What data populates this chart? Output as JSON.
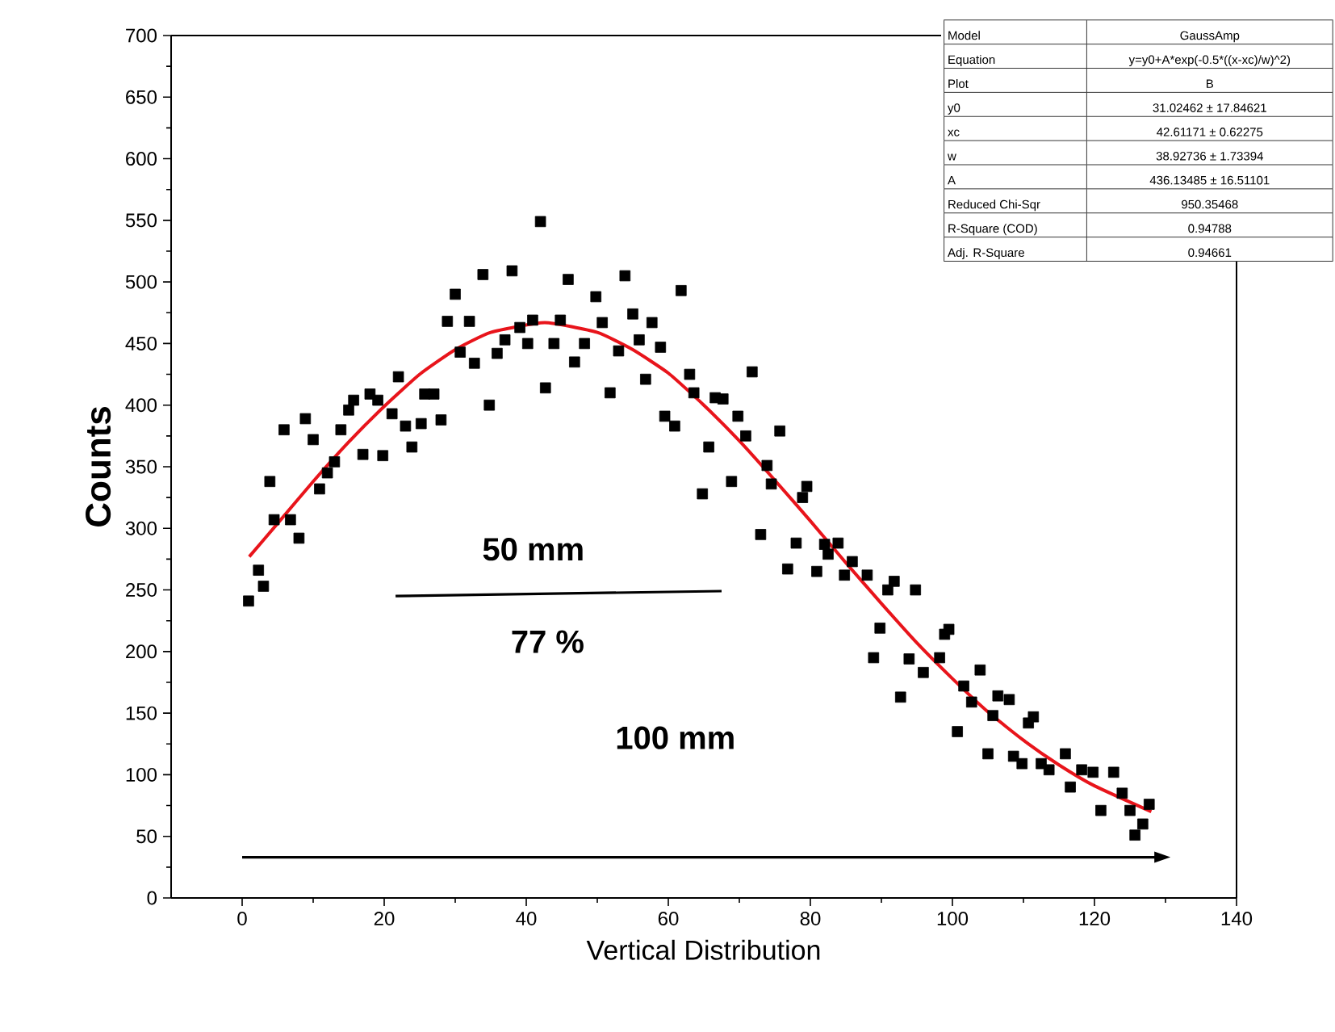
{
  "chart_data": {
    "type": "scatter",
    "xlabel": "Vertical Distribution",
    "ylabel": "Counts",
    "xlim": [
      -10,
      140
    ],
    "xticks": [
      0,
      20,
      40,
      60,
      80,
      100,
      120,
      140
    ],
    "ylim": [
      0,
      700
    ],
    "yticks": [
      0,
      50,
      100,
      150,
      200,
      250,
      300,
      350,
      400,
      450,
      500,
      550,
      600,
      650,
      700
    ],
    "grid": false,
    "series": [
      {
        "type": "scatter",
        "marker": "square",
        "color": "#000000",
        "x": [
          0.9,
          2.3,
          3.0,
          3.9,
          4.5,
          5.9,
          6.8,
          8.0,
          8.9,
          10.0,
          10.9,
          12.0,
          13.0,
          13.9,
          15.0,
          15.7,
          17.0,
          18.0,
          19.1,
          19.8,
          21.1,
          22.0,
          23.0,
          23.9,
          25.2,
          25.7,
          27.0,
          28.0,
          28.9,
          30.0,
          30.7,
          32.0,
          32.7,
          33.9,
          34.8,
          35.9,
          37.0,
          38.0,
          39.1,
          40.2,
          40.9,
          42.0,
          42.7,
          43.9,
          44.8,
          45.9,
          46.8,
          48.2,
          49.8,
          50.7,
          51.8,
          53.0,
          53.9,
          55.0,
          55.9,
          56.8,
          57.7,
          58.9,
          59.5,
          60.9,
          61.8,
          63.0,
          63.6,
          64.8,
          65.7,
          66.6,
          67.7,
          68.9,
          69.8,
          70.9,
          71.8,
          73.0,
          73.9,
          74.5,
          75.7,
          76.8,
          78.0,
          78.9,
          79.5,
          80.9,
          82.0,
          82.5,
          83.9,
          84.8,
          85.9,
          88.0,
          88.9,
          89.8,
          90.9,
          91.8,
          92.7,
          93.9,
          94.8,
          95.9,
          98.2,
          98.9,
          99.5,
          100.7,
          101.6,
          102.7,
          103.9,
          105.0,
          105.7,
          106.4,
          108.0,
          108.6,
          109.8,
          110.7,
          111.4,
          112.5,
          113.6,
          115.9,
          116.6,
          118.2,
          119.8,
          120.9,
          122.7,
          123.9,
          125.0,
          125.7,
          126.8,
          127.7
        ],
        "values": [
          241,
          266,
          253,
          338,
          307,
          380,
          307,
          292,
          389,
          372,
          332,
          345,
          354,
          380,
          396,
          404,
          360,
          409,
          404,
          359,
          393,
          423,
          383,
          366,
          385,
          409,
          409,
          388,
          468,
          490,
          443,
          468,
          434,
          506,
          400,
          442,
          453,
          509,
          463,
          450,
          469,
          549,
          414,
          450,
          469,
          502,
          435,
          450,
          488,
          467,
          410,
          444,
          505,
          474,
          453,
          421,
          467,
          447,
          391,
          383,
          493,
          425,
          410,
          328,
          366,
          406,
          405,
          338,
          391,
          375,
          427,
          295,
          351,
          336,
          379,
          267,
          288,
          325,
          334,
          265,
          287,
          279,
          288,
          262,
          273,
          262,
          195,
          219,
          250,
          257,
          163,
          194,
          250,
          183,
          195,
          214,
          218,
          135,
          172,
          159,
          185,
          117,
          148,
          164,
          161,
          115,
          109,
          142,
          147,
          109,
          104,
          117,
          90,
          104,
          102,
          71,
          102,
          85,
          71,
          51,
          60,
          76
        ]
      },
      {
        "type": "line",
        "marker": "none",
        "color": "#e8141b",
        "x": [
          1,
          5,
          10,
          15,
          20,
          25,
          30,
          35,
          42.6,
          50,
          55,
          60,
          65,
          70,
          75,
          80,
          85,
          90,
          95,
          100,
          105,
          110,
          115,
          120,
          128
        ],
        "values": [
          277,
          304,
          338,
          370,
          399,
          425,
          445,
          459,
          467,
          459,
          445,
          426,
          400,
          371,
          339,
          306,
          272,
          239,
          207,
          178,
          151,
          128,
          108,
          91,
          70
        ]
      }
    ],
    "annotations": [
      "50 mm",
      "77 %",
      "100 mm",
      "Model",
      "GaussAmp",
      "Equation",
      "y=y0+A*exp(-0.5*((x-xc)/w)^2)",
      "Plot",
      "B",
      "y0",
      "31.02462 ± 17.84621",
      "xc",
      "42.61171 ± 0.62275",
      "w",
      "38.92736 ± 1.73394",
      "A",
      "436.13485 ± 16.51101",
      "Reduced Chi-Sqr",
      "950.35468",
      "R-Square (COD)",
      "0.94788",
      "Adj. R-Square",
      "0.94661"
    ]
  }
}
